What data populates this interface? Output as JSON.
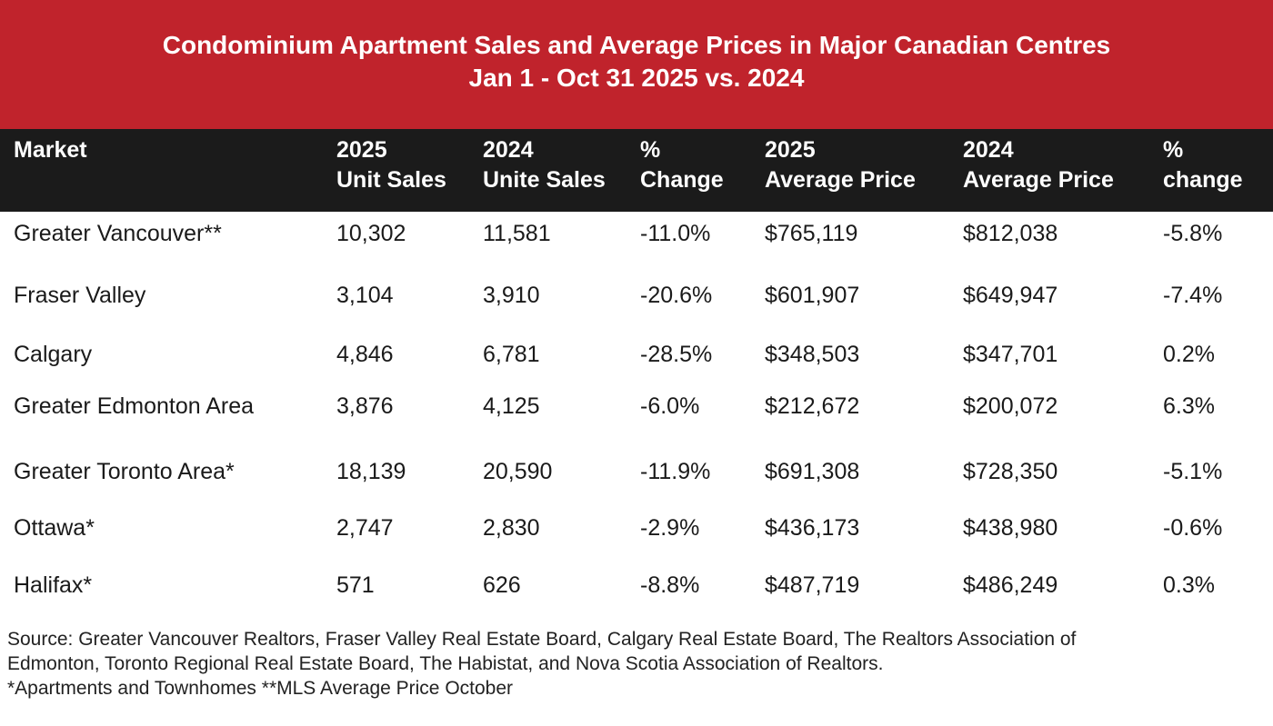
{
  "title": "Condominium Apartment Sales and Average Prices in Major Canadian Centres",
  "subtitle": "Jan 1 - Oct 31 2025 vs. 2024",
  "colors": {
    "title_band": "#c0232c",
    "header_band": "#1b1b1b"
  },
  "chart_data": {
    "type": "table",
    "title": "Condominium Apartment Sales and Average Prices in Major Canadian Centres",
    "subtitle": "Jan 1 - Oct 31 2025 vs. 2024",
    "columns": [
      {
        "line1": "Market",
        "line2": ""
      },
      {
        "line1": "2025",
        "line2": "Unit Sales"
      },
      {
        "line1": "2024",
        "line2": "Unite Sales"
      },
      {
        "line1": "%",
        "line2": "Change"
      },
      {
        "line1": "2025",
        "line2": "Average Price"
      },
      {
        "line1": "2024",
        "line2": "Average Price"
      },
      {
        "line1": "%",
        "line2": "change"
      }
    ],
    "rows": [
      [
        "Greater Vancouver**",
        "10,302",
        "11,581",
        "-11.0%",
        "$765,119",
        "$812,038",
        "-5.8%"
      ],
      [
        "Fraser Valley",
        "3,104",
        "3,910",
        "-20.6%",
        "$601,907",
        "$649,947",
        "-7.4%"
      ],
      [
        "Calgary",
        "4,846",
        "6,781",
        "-28.5%",
        "$348,503",
        "$347,701",
        "0.2%"
      ],
      [
        "Greater Edmonton Area",
        "3,876",
        "4,125",
        "-6.0%",
        "$212,672",
        "$200,072",
        "6.3%"
      ],
      [
        "Greater Toronto Area*",
        "18,139",
        "20,590",
        "-11.9%",
        "$691,308",
        "$728,350",
        "-5.1%"
      ],
      [
        "Ottawa*",
        "2,747",
        "2,830",
        "-2.9%",
        "$436,173",
        "$438,980",
        "-0.6%"
      ],
      [
        "Halifax*",
        "571",
        "626",
        "-8.8%",
        "$487,719",
        "$486,249",
        "0.3%"
      ]
    ]
  },
  "footer": {
    "source_line1": "Source: Greater Vancouver Realtors, Fraser Valley Real Estate Board, Calgary Real Estate Board, The Realtors Association of",
    "source_line2": "Edmonton, Toronto Regional Real Estate Board, The Habistat, and Nova Scotia Association of Realtors.",
    "notes": "*Apartments and Townhomes **MLS Average Price October"
  }
}
